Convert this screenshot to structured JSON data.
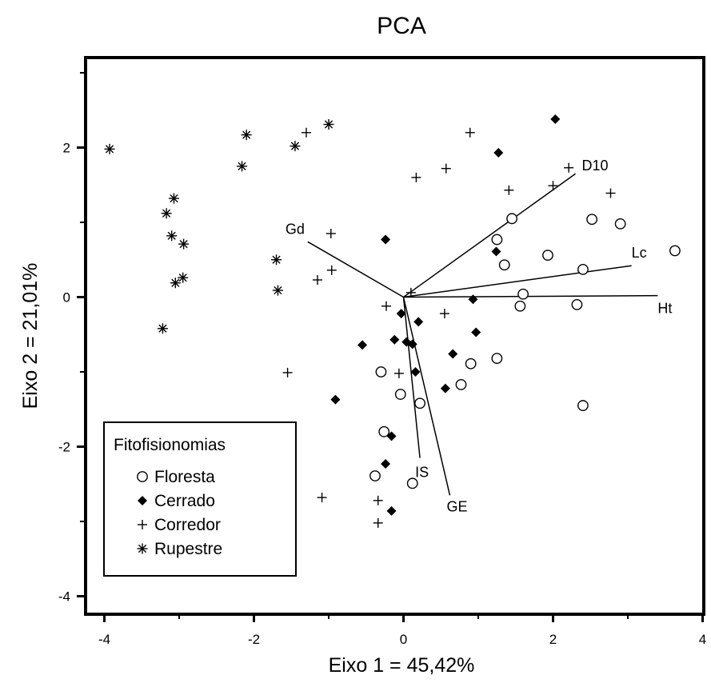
{
  "chart_data": {
    "type": "scatter",
    "title": "PCA",
    "xlabel": "Eixo 1 = 45,42%",
    "ylabel": "Eixo 2 = 21,01%",
    "xlim": [
      -4.3,
      4.1
    ],
    "ylim": [
      -4.25,
      3.25
    ],
    "x_ticks": [
      -4,
      -2,
      0,
      2,
      4
    ],
    "y_ticks": [
      -4,
      -2,
      0,
      2
    ],
    "x_tick_labels": [
      "-4",
      "-2",
      "0",
      "2",
      "4"
    ],
    "y_tick_labels": [
      "-4",
      "-2",
      "0",
      "2"
    ],
    "grid": false,
    "legend": {
      "title": "Fitofisionomias",
      "placement": "bottom-left",
      "entries": [
        "Floresta",
        "Cerrado",
        "Corredor",
        "Rupestre"
      ]
    },
    "series": [
      {
        "name": "Floresta",
        "marker": "open-circle",
        "points": [
          [
            1.45,
            1.05
          ],
          [
            1.25,
            0.77
          ],
          [
            1.35,
            0.43
          ],
          [
            2.52,
            1.04
          ],
          [
            2.9,
            0.98
          ],
          [
            3.63,
            0.62
          ],
          [
            1.93,
            0.56
          ],
          [
            2.4,
            0.37
          ],
          [
            1.6,
            0.04
          ],
          [
            1.56,
            -0.12
          ],
          [
            2.32,
            -0.1
          ],
          [
            1.25,
            -0.82
          ],
          [
            0.9,
            -0.89
          ],
          [
            0.77,
            -1.17
          ],
          [
            -0.3,
            -1.0
          ],
          [
            -0.04,
            -1.3
          ],
          [
            0.22,
            -1.42
          ],
          [
            2.4,
            -1.45
          ],
          [
            -0.26,
            -1.8
          ],
          [
            -0.38,
            -2.39
          ],
          [
            0.12,
            -2.49
          ]
        ]
      },
      {
        "name": "Cerrado",
        "marker": "filled-diamond",
        "points": [
          [
            2.03,
            2.38
          ],
          [
            1.27,
            1.93
          ],
          [
            -0.24,
            0.77
          ],
          [
            1.24,
            0.61
          ],
          [
            -0.03,
            -0.22
          ],
          [
            0.93,
            -0.03
          ],
          [
            0.2,
            -0.33
          ],
          [
            0.97,
            -0.47
          ],
          [
            -0.55,
            -0.64
          ],
          [
            -0.12,
            -0.57
          ],
          [
            0.04,
            -0.6
          ],
          [
            0.12,
            -0.63
          ],
          [
            0.66,
            -0.76
          ],
          [
            0.16,
            -1.0
          ],
          [
            0.56,
            -1.22
          ],
          [
            -0.91,
            -1.37
          ],
          [
            -0.16,
            -1.86
          ],
          [
            -0.24,
            -2.23
          ],
          [
            -0.16,
            -2.86
          ]
        ]
      },
      {
        "name": "Corredor",
        "marker": "plus",
        "points": [
          [
            -1.3,
            2.2
          ],
          [
            0.89,
            2.2
          ],
          [
            0.57,
            1.72
          ],
          [
            0.17,
            1.6
          ],
          [
            2.21,
            1.73
          ],
          [
            1.41,
            1.43
          ],
          [
            2.0,
            1.49
          ],
          [
            2.77,
            1.39
          ],
          [
            -0.97,
            0.85
          ],
          [
            -0.96,
            0.36
          ],
          [
            -1.15,
            0.23
          ],
          [
            0.1,
            0.06
          ],
          [
            -0.23,
            -0.12
          ],
          [
            0.55,
            -0.22
          ],
          [
            -0.06,
            -1.02
          ],
          [
            -1.55,
            -1.01
          ],
          [
            -1.09,
            -2.68
          ],
          [
            -0.34,
            -2.72
          ],
          [
            -0.34,
            -3.02
          ]
        ]
      },
      {
        "name": "Rupestre",
        "marker": "asterisk",
        "points": [
          [
            -3.93,
            1.98
          ],
          [
            -2.1,
            2.17
          ],
          [
            -1.45,
            2.02
          ],
          [
            -1.0,
            2.31
          ],
          [
            -2.16,
            1.75
          ],
          [
            -3.07,
            1.32
          ],
          [
            -3.17,
            1.12
          ],
          [
            -3.1,
            0.82
          ],
          [
            -2.94,
            0.71
          ],
          [
            -1.7,
            0.5
          ],
          [
            -2.95,
            0.26
          ],
          [
            -3.05,
            0.19
          ],
          [
            -1.68,
            0.09
          ],
          [
            -3.22,
            -0.42
          ]
        ]
      }
    ],
    "vectors": [
      {
        "name": "D10",
        "x": 2.3,
        "y": 1.65
      },
      {
        "name": "Lc",
        "x": 3.05,
        "y": 0.42
      },
      {
        "name": "Ht",
        "x": 3.4,
        "y": 0.02
      },
      {
        "name": "Gd",
        "x": -1.28,
        "y": 0.74
      },
      {
        "name": "IS",
        "x": 0.22,
        "y": -2.15
      },
      {
        "name": "GE",
        "x": 0.62,
        "y": -2.65
      }
    ]
  }
}
